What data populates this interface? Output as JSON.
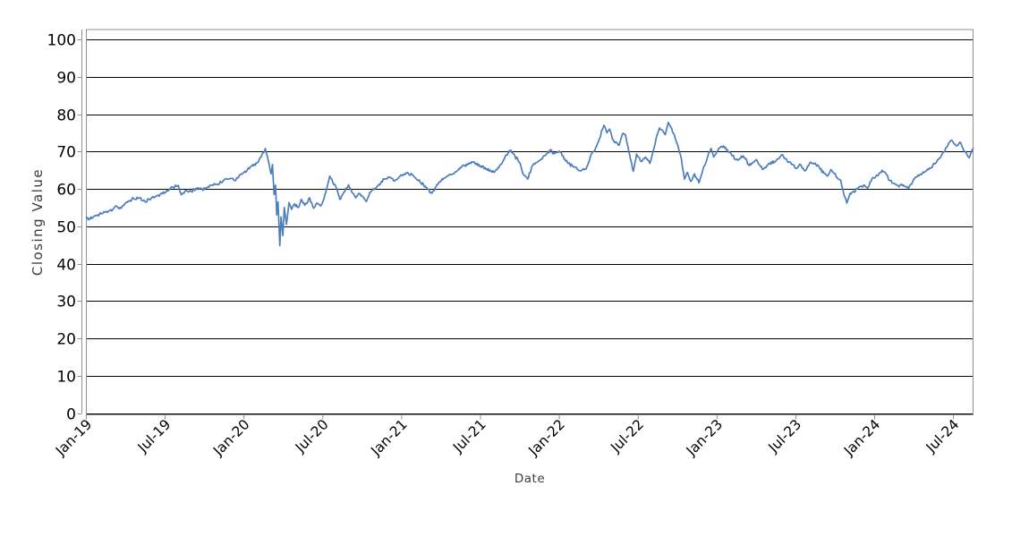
{
  "chart_data": {
    "type": "line",
    "title": "",
    "xlabel": "Date",
    "ylabel": "Closing Value",
    "ylim": [
      0,
      100
    ],
    "ytick_step": 10,
    "y_tick_labels": [
      "0",
      "10",
      "20",
      "30",
      "40",
      "50",
      "60",
      "70",
      "80",
      "90",
      "100"
    ],
    "x_tick_labels": [
      "Jan-19",
      "Jul-19",
      "Jan-20",
      "Jul-20",
      "Jan-21",
      "Jul-21",
      "Jan-22",
      "Jul-22",
      "Jan-23",
      "Jul-23",
      "Jan-24",
      "Jul-24"
    ],
    "x_tick_interval_months": 6,
    "x_range": [
      "2019-01-01",
      "2024-08-16"
    ],
    "grid": {
      "horizontal": true,
      "vertical": false,
      "color": "#000000"
    },
    "frame_color": "#8f8f8f",
    "tick_color": "#8f8f8f",
    "text_color": "#000000",
    "axis_title_color": "#3d3d3d",
    "legend": "none",
    "series": [
      {
        "name": "Closing Value",
        "color": "#4c7dbd",
        "points": [
          [
            "2019-01-01",
            52.4
          ],
          [
            "2019-01-10",
            51.9
          ],
          [
            "2019-01-20",
            52.8
          ],
          [
            "2019-02-01",
            53.2
          ],
          [
            "2019-02-15",
            53.8
          ],
          [
            "2019-03-01",
            54.4
          ],
          [
            "2019-03-10",
            55.4
          ],
          [
            "2019-03-20",
            54.8
          ],
          [
            "2019-04-01",
            56.3
          ],
          [
            "2019-04-15",
            57.2
          ],
          [
            "2019-05-01",
            57.5
          ],
          [
            "2019-05-15",
            56.6
          ],
          [
            "2019-06-01",
            57.7
          ],
          [
            "2019-06-15",
            58.3
          ],
          [
            "2019-07-01",
            59.1
          ],
          [
            "2019-07-15",
            60.5
          ],
          [
            "2019-08-01",
            60.9
          ],
          [
            "2019-08-08",
            58.4
          ],
          [
            "2019-08-20",
            59.5
          ],
          [
            "2019-09-01",
            59.3
          ],
          [
            "2019-09-15",
            60.3
          ],
          [
            "2019-10-01",
            59.8
          ],
          [
            "2019-10-15",
            61.0
          ],
          [
            "2019-11-01",
            61.1
          ],
          [
            "2019-11-15",
            62.3
          ],
          [
            "2019-12-01",
            62.8
          ],
          [
            "2019-12-10",
            62.2
          ],
          [
            "2019-12-20",
            63.5
          ],
          [
            "2020-01-01",
            64.4
          ],
          [
            "2020-01-15",
            65.8
          ],
          [
            "2020-02-01",
            67.0
          ],
          [
            "2020-02-10",
            68.5
          ],
          [
            "2020-02-20",
            70.8
          ],
          [
            "2020-02-26",
            68.0
          ],
          [
            "2020-03-03",
            64.0
          ],
          [
            "2020-03-06",
            66.5
          ],
          [
            "2020-03-10",
            58.5
          ],
          [
            "2020-03-13",
            61.0
          ],
          [
            "2020-03-16",
            53.0
          ],
          [
            "2020-03-19",
            56.5
          ],
          [
            "2020-03-23",
            44.8
          ],
          [
            "2020-03-26",
            52.5
          ],
          [
            "2020-03-30",
            47.5
          ],
          [
            "2020-04-03",
            55.0
          ],
          [
            "2020-04-08",
            50.5
          ],
          [
            "2020-04-14",
            56.3
          ],
          [
            "2020-04-20",
            54.5
          ],
          [
            "2020-04-27",
            56.0
          ],
          [
            "2020-05-05",
            55.0
          ],
          [
            "2020-05-12",
            57.2
          ],
          [
            "2020-05-20",
            55.6
          ],
          [
            "2020-06-01",
            57.6
          ],
          [
            "2020-06-10",
            54.8
          ],
          [
            "2020-06-18",
            56.2
          ],
          [
            "2020-06-26",
            55.4
          ],
          [
            "2020-07-04",
            57.5
          ],
          [
            "2020-07-10",
            60.0
          ],
          [
            "2020-07-17",
            63.4
          ],
          [
            "2020-07-24",
            61.8
          ],
          [
            "2020-08-01",
            60.5
          ],
          [
            "2020-08-10",
            57.2
          ],
          [
            "2020-08-18",
            58.8
          ],
          [
            "2020-08-30",
            61.1
          ],
          [
            "2020-09-08",
            59.0
          ],
          [
            "2020-09-16",
            57.6
          ],
          [
            "2020-09-24",
            58.8
          ],
          [
            "2020-10-02",
            57.9
          ],
          [
            "2020-10-10",
            56.6
          ],
          [
            "2020-10-20",
            59.1
          ],
          [
            "2020-11-01",
            60.2
          ],
          [
            "2020-11-15",
            62.0
          ],
          [
            "2020-12-01",
            63.2
          ],
          [
            "2020-12-15",
            62.1
          ],
          [
            "2021-01-01",
            63.7
          ],
          [
            "2021-01-15",
            64.4
          ],
          [
            "2021-02-01",
            63.1
          ],
          [
            "2021-02-15",
            61.6
          ],
          [
            "2021-03-01",
            59.9
          ],
          [
            "2021-03-10",
            58.8
          ],
          [
            "2021-03-20",
            60.6
          ],
          [
            "2021-04-01",
            62.1
          ],
          [
            "2021-04-15",
            63.4
          ],
          [
            "2021-05-01",
            64.1
          ],
          [
            "2021-05-15",
            65.7
          ],
          [
            "2021-06-01",
            66.4
          ],
          [
            "2021-06-15",
            67.2
          ],
          [
            "2021-07-01",
            66.1
          ],
          [
            "2021-07-15",
            65.4
          ],
          [
            "2021-08-01",
            64.5
          ],
          [
            "2021-08-15",
            66.2
          ],
          [
            "2021-09-01",
            69.0
          ],
          [
            "2021-09-10",
            70.4
          ],
          [
            "2021-09-20",
            68.8
          ],
          [
            "2021-10-01",
            67.0
          ],
          [
            "2021-10-10",
            63.7
          ],
          [
            "2021-10-19",
            62.6
          ],
          [
            "2021-11-01",
            66.4
          ],
          [
            "2021-11-10",
            67.1
          ],
          [
            "2021-11-20",
            68.0
          ],
          [
            "2021-12-01",
            69.2
          ],
          [
            "2021-12-10",
            70.4
          ],
          [
            "2021-12-20",
            69.4
          ],
          [
            "2022-01-01",
            70.1
          ],
          [
            "2022-01-10",
            68.8
          ],
          [
            "2022-01-20",
            67.0
          ],
          [
            "2022-02-01",
            66.1
          ],
          [
            "2022-02-10",
            65.7
          ],
          [
            "2022-02-20",
            64.8
          ],
          [
            "2022-03-02",
            65.3
          ],
          [
            "2022-03-08",
            67.0
          ],
          [
            "2022-03-14",
            69.3
          ],
          [
            "2022-03-20",
            70.0
          ],
          [
            "2022-03-26",
            71.3
          ],
          [
            "2022-04-03",
            73.5
          ],
          [
            "2022-04-13",
            77.0
          ],
          [
            "2022-04-20",
            75.0
          ],
          [
            "2022-04-26",
            76.0
          ],
          [
            "2022-05-04",
            73.0
          ],
          [
            "2022-05-12",
            72.3
          ],
          [
            "2022-05-18",
            71.7
          ],
          [
            "2022-05-26",
            74.8
          ],
          [
            "2022-06-02",
            74.5
          ],
          [
            "2022-06-10",
            70.0
          ],
          [
            "2022-06-20",
            64.7
          ],
          [
            "2022-06-28",
            69.3
          ],
          [
            "2022-07-08",
            67.3
          ],
          [
            "2022-07-18",
            68.5
          ],
          [
            "2022-07-28",
            66.8
          ],
          [
            "2022-08-05",
            70.0
          ],
          [
            "2022-08-12",
            73.5
          ],
          [
            "2022-08-20",
            76.3
          ],
          [
            "2022-08-28",
            75.5
          ],
          [
            "2022-09-03",
            74.5
          ],
          [
            "2022-09-10",
            77.8
          ],
          [
            "2022-09-16",
            76.5
          ],
          [
            "2022-09-24",
            74.5
          ],
          [
            "2022-10-03",
            71.0
          ],
          [
            "2022-10-10",
            67.9
          ],
          [
            "2022-10-17",
            62.6
          ],
          [
            "2022-10-24",
            64.4
          ],
          [
            "2022-11-01",
            62.0
          ],
          [
            "2022-11-10",
            64.0
          ],
          [
            "2022-11-20",
            61.6
          ],
          [
            "2022-11-28",
            64.5
          ],
          [
            "2022-12-06",
            67.1
          ],
          [
            "2022-12-12",
            69.5
          ],
          [
            "2022-12-18",
            70.8
          ],
          [
            "2022-12-24",
            68.5
          ],
          [
            "2023-01-01",
            70.0
          ],
          [
            "2023-01-12",
            71.4
          ],
          [
            "2023-01-25",
            70.5
          ],
          [
            "2023-02-05",
            69.0
          ],
          [
            "2023-02-15",
            67.8
          ],
          [
            "2023-03-01",
            68.8
          ],
          [
            "2023-03-15",
            66.2
          ],
          [
            "2023-04-01",
            67.8
          ],
          [
            "2023-04-15",
            65.2
          ],
          [
            "2023-05-01",
            66.8
          ],
          [
            "2023-05-15",
            67.3
          ],
          [
            "2023-06-01",
            69.1
          ],
          [
            "2023-06-15",
            67.2
          ],
          [
            "2023-07-01",
            65.5
          ],
          [
            "2023-07-12",
            66.5
          ],
          [
            "2023-07-22",
            64.8
          ],
          [
            "2023-08-02",
            66.7
          ],
          [
            "2023-08-15",
            66.9
          ],
          [
            "2023-08-25",
            65.8
          ],
          [
            "2023-09-05",
            64.2
          ],
          [
            "2023-09-13",
            63.4
          ],
          [
            "2023-09-23",
            65.0
          ],
          [
            "2023-10-05",
            63.0
          ],
          [
            "2023-10-14",
            62.2
          ],
          [
            "2023-10-21",
            58.5
          ],
          [
            "2023-10-28",
            56.2
          ],
          [
            "2023-11-05",
            58.8
          ],
          [
            "2023-11-15",
            59.1
          ],
          [
            "2023-11-25",
            60.5
          ],
          [
            "2023-12-06",
            61.0
          ],
          [
            "2023-12-15",
            60.2
          ],
          [
            "2023-12-25",
            62.7
          ],
          [
            "2024-01-08",
            63.5
          ],
          [
            "2024-01-18",
            65.0
          ],
          [
            "2024-01-26",
            64.3
          ],
          [
            "2024-02-05",
            62.3
          ],
          [
            "2024-02-15",
            61.5
          ],
          [
            "2024-02-25",
            60.8
          ],
          [
            "2024-03-07",
            61.0
          ],
          [
            "2024-03-19",
            60.2
          ],
          [
            "2024-03-28",
            61.8
          ],
          [
            "2024-04-08",
            63.2
          ],
          [
            "2024-04-18",
            63.8
          ],
          [
            "2024-04-28",
            64.7
          ],
          [
            "2024-05-08",
            65.5
          ],
          [
            "2024-05-19",
            66.7
          ],
          [
            "2024-05-28",
            68.0
          ],
          [
            "2024-06-09",
            69.9
          ],
          [
            "2024-06-18",
            71.5
          ],
          [
            "2024-06-26",
            73.0
          ],
          [
            "2024-07-03",
            72.0
          ],
          [
            "2024-07-09",
            71.5
          ],
          [
            "2024-07-16",
            72.5
          ],
          [
            "2024-07-24",
            70.5
          ],
          [
            "2024-08-01",
            69.4
          ],
          [
            "2024-08-07",
            68.3
          ],
          [
            "2024-08-12",
            70.0
          ],
          [
            "2024-08-16",
            70.8
          ]
        ]
      }
    ]
  }
}
